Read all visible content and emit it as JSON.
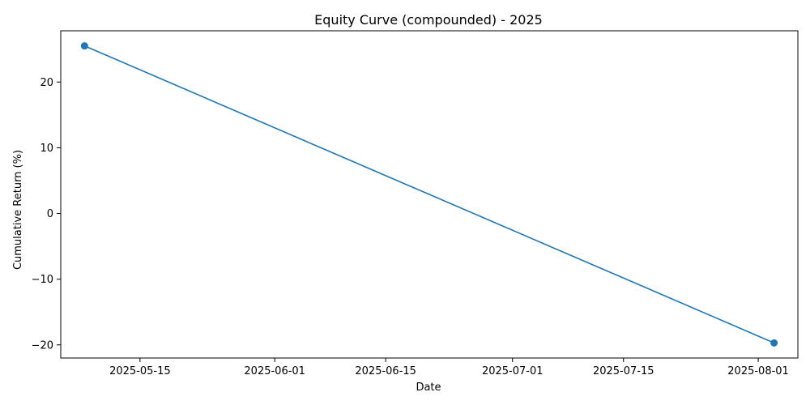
{
  "chart_data": {
    "type": "line",
    "title": "Equity Curve (compounded) - 2025",
    "xlabel": "Date",
    "ylabel": "Cumulative Return (%)",
    "x_tick_labels": [
      "2025-05-15",
      "2025-06-01",
      "2025-06-15",
      "2025-07-01",
      "2025-07-15",
      "2025-08-01"
    ],
    "y_tick_values": [
      -20,
      -10,
      0,
      10,
      20
    ],
    "y_tick_labels": [
      "−20",
      "−10",
      "0",
      "10",
      "20"
    ],
    "xlim": [
      "2025-05-05",
      "2025-08-06"
    ],
    "ylim": [
      -22.0,
      27.8
    ],
    "grid": false,
    "series": [
      {
        "x": [
          "2025-05-08",
          "2025-08-03"
        ],
        "y": [
          25.5,
          -19.7
        ],
        "color": "#1f77b4",
        "marker": "circle"
      }
    ]
  }
}
